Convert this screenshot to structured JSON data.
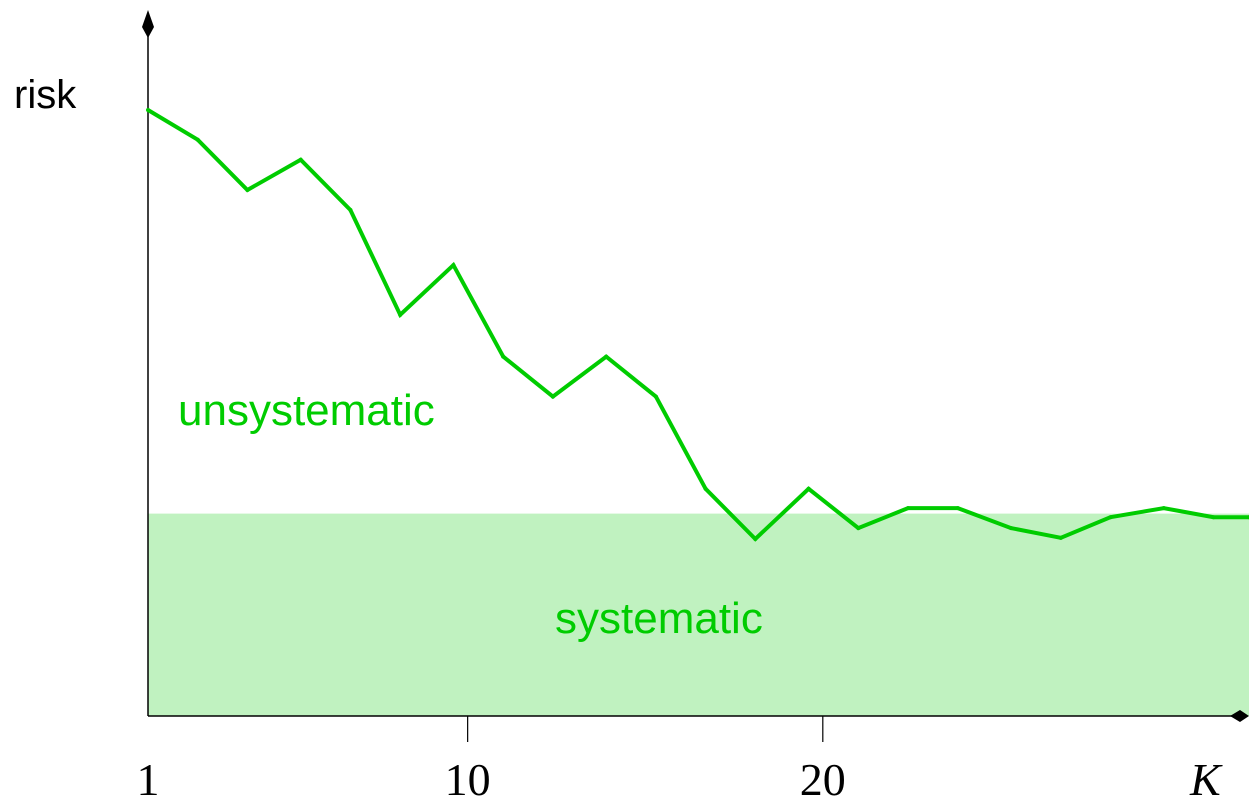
{
  "chart_data": {
    "type": "line",
    "ylabel": "risk",
    "xlabel": "K",
    "x_ticks": [
      {
        "value": 1,
        "label": "1"
      },
      {
        "value": 10,
        "label": "10"
      },
      {
        "value": 20,
        "label": "20"
      }
    ],
    "xlim": [
      1,
      32
    ],
    "ylim": [
      0,
      100
    ],
    "systematic_level": 33.4,
    "region_labels": {
      "unsystematic": "unsystematic",
      "systematic": "systematic"
    },
    "series": [
      {
        "x": [
          1,
          2.4,
          3.8,
          5.3,
          6.7,
          8.1,
          9.6,
          11,
          12.4,
          13.9,
          15.3,
          16.7,
          18.1,
          19.6,
          21,
          22.4,
          23.8,
          25.3,
          26.7,
          28.1,
          29.6,
          31,
          32
        ],
        "values": [
          100,
          95.1,
          86.8,
          91.8,
          83.5,
          66.2,
          74.4,
          59.3,
          52.7,
          59.3,
          52.7,
          37.5,
          29.2,
          37.5,
          31.0,
          34.3,
          34.3,
          31.0,
          29.4,
          32.8,
          34.3,
          32.8,
          32.8
        ]
      }
    ],
    "colors": {
      "line": "#00cc00",
      "systematic_fill": "#c0f2c0",
      "axis": "#000000",
      "label_green": "#00cc00"
    }
  }
}
